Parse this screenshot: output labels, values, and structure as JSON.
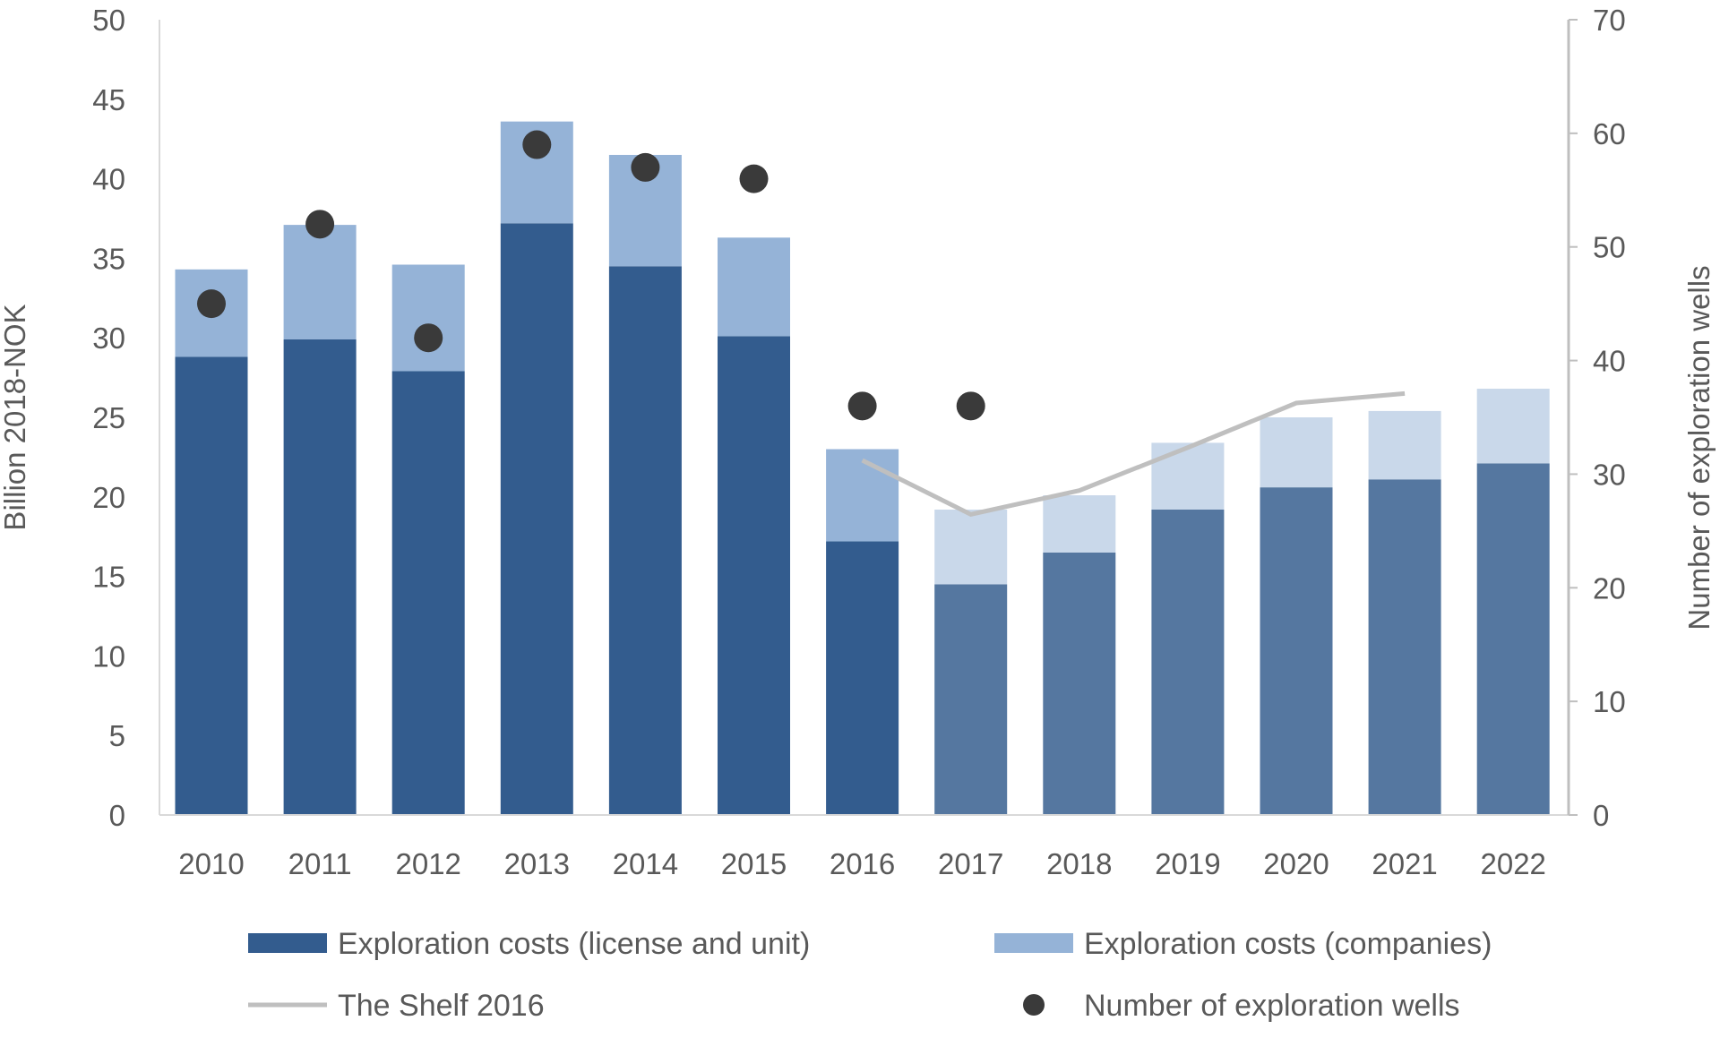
{
  "chart_data": {
    "type": "bar",
    "stacked": true,
    "categories": [
      "2010",
      "2011",
      "2012",
      "2013",
      "2014",
      "2015",
      "2016",
      "2017",
      "2018",
      "2019",
      "2020",
      "2021",
      "2022"
    ],
    "ylabel": "Billion 2018-NOK",
    "ylabel_right": "Number of exploration wells",
    "ylim": [
      0,
      50
    ],
    "yticks": [
      0,
      5,
      10,
      15,
      20,
      25,
      30,
      35,
      40,
      45,
      50
    ],
    "ylim_right": [
      0,
      70
    ],
    "yticks_right": [
      0,
      10,
      20,
      30,
      40,
      50,
      60,
      70
    ],
    "grid": false,
    "legend_position": "bottom",
    "forecast_from": "2017",
    "series": [
      {
        "name": "Exploration costs (license and unit)",
        "kind": "bar",
        "axis": "left",
        "color": "#335c8e",
        "forecast_color": "#5577a0",
        "values": [
          28.8,
          29.9,
          27.9,
          37.2,
          34.5,
          30.1,
          17.2,
          14.5,
          16.5,
          19.2,
          20.6,
          21.1,
          22.1
        ]
      },
      {
        "name": "Exploration costs (companies)",
        "kind": "bar",
        "axis": "left",
        "color": "#95b3d7",
        "forecast_color": "#c9d8ea",
        "values": [
          5.5,
          7.2,
          6.7,
          6.4,
          7.0,
          6.2,
          5.8,
          4.7,
          3.6,
          4.2,
          4.4,
          4.3,
          4.7
        ]
      },
      {
        "name": "The Shelf 2016",
        "kind": "line",
        "axis": "left",
        "color": "#bfbfbf",
        "values": [
          null,
          null,
          null,
          null,
          null,
          null,
          22.3,
          18.9,
          20.4,
          23.1,
          25.9,
          26.5,
          null
        ]
      },
      {
        "name": "Number of exploration wells",
        "kind": "scatter",
        "axis": "right",
        "color": "#3a3a3a",
        "values": [
          45,
          52,
          42,
          59,
          57,
          56,
          36,
          36,
          null,
          null,
          null,
          null,
          null
        ]
      }
    ]
  }
}
